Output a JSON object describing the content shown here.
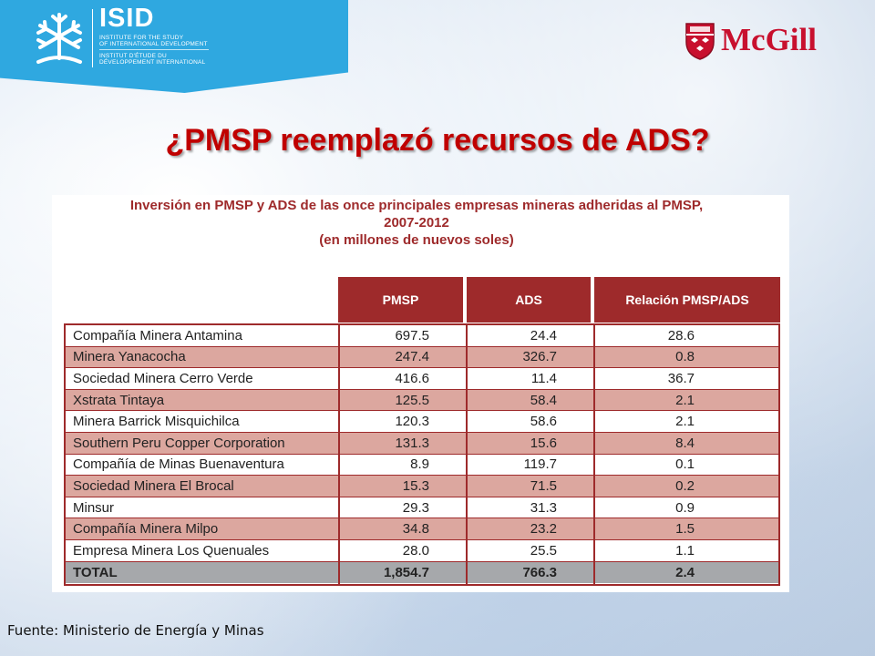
{
  "header": {
    "isid_acronym": "ISID",
    "isid_en_line1": "INSTITUTE FOR THE STUDY",
    "isid_en_line2": "OF INTERNATIONAL DEVELOPMENT",
    "isid_fr_line1": "INSTITUT D'ÉTUDE DU",
    "isid_fr_line2": "DÉVELOPPEMENT INTERNATIONAL",
    "mcgill_wordmark": "McGill",
    "isid_color": "#2fa8e0",
    "mcgill_color": "#c8102e"
  },
  "slide_title": "¿PMSP  reemplazó recursos de ADS?",
  "table": {
    "title_line1": "Inversión en PMSP y ADS de las once principales empresas mineras adheridas al PMSP,",
    "title_line2": "2007-2012",
    "title_line3": "(en millones de nuevos soles)",
    "columns": [
      "PMSP",
      "ADS",
      "Relación PMSP/ADS"
    ],
    "rows": [
      {
        "name": "Compañía Minera Antamina",
        "pmsp": "697.5",
        "ads": "24.4",
        "rel": "28.6"
      },
      {
        "name": "Minera Yanacocha",
        "pmsp": "247.4",
        "ads": "326.7",
        "rel": "0.8"
      },
      {
        "name": "Sociedad Minera Cerro Verde",
        "pmsp": "416.6",
        "ads": "11.4",
        "rel": "36.7"
      },
      {
        "name": "Xstrata Tintaya",
        "pmsp": "125.5",
        "ads": "58.4",
        "rel": "2.1"
      },
      {
        "name": "Minera Barrick Misquichilca",
        "pmsp": "120.3",
        "ads": "58.6",
        "rel": "2.1"
      },
      {
        "name": "Southern Peru Copper Corporation",
        "pmsp": "131.3",
        "ads": "15.6",
        "rel": "8.4"
      },
      {
        "name": "Compañía de Minas Buenaventura",
        "pmsp": "8.9",
        "ads": "119.7",
        "rel": "0.1"
      },
      {
        "name": "Sociedad Minera El Brocal",
        "pmsp": "15.3",
        "ads": "71.5",
        "rel": "0.2"
      },
      {
        "name": "Minsur",
        "pmsp": "29.3",
        "ads": "31.3",
        "rel": "0.9"
      },
      {
        "name": "Compañía Minera Milpo",
        "pmsp": "34.8",
        "ads": "23.2",
        "rel": "1.5"
      },
      {
        "name": "Empresa Minera Los Quenuales",
        "pmsp": "28.0",
        "ads": "25.5",
        "rel": "1.1"
      }
    ],
    "total": {
      "name": "TOTAL",
      "pmsp": "1,854.7",
      "ads": "766.3",
      "rel": "2.4"
    },
    "header_color": "#9e2a2b",
    "shade_color": "#dca79f",
    "total_color": "#a6a8ab"
  },
  "source_note": "Fuente: Ministerio de Energía y Minas"
}
